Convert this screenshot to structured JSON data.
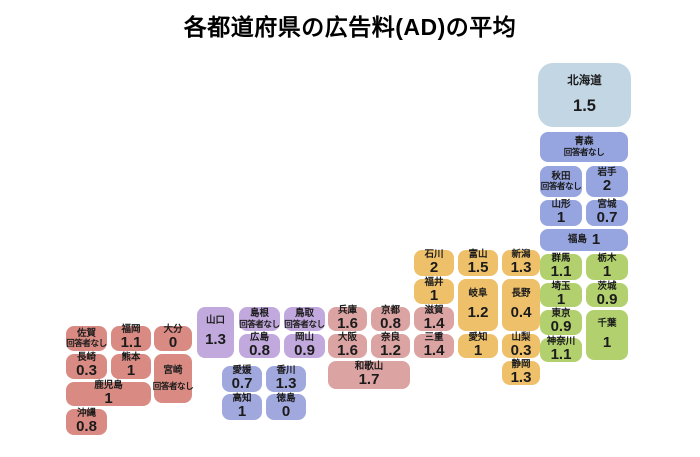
{
  "page_title": "各都道府県の広告料(AD)の平均",
  "chart_data": {
    "type": "heatmap",
    "variant": "japan-prefecture-grid-cartogram",
    "title": "各都道府県の広告料(AD)の平均",
    "metric": "広告料(AD)の平均",
    "no_answer_text": "回答者なし",
    "legend_position": "none",
    "region_colors": {
      "hokkaido": "#c3d6e4",
      "tohoku": "#96a5e0",
      "kanto": "#b2d06e",
      "chubu": "#efc06a",
      "kansai": "#dba3a2",
      "chugoku": "#c2a9dd",
      "shikoku": "#a0a8dd",
      "kyushu": "#d98b83"
    },
    "prefectures": [
      {
        "key": "hokkaido",
        "label": "北海道",
        "region": "hokkaido",
        "value": 1.5
      },
      {
        "key": "aomori",
        "label": "青森",
        "region": "tohoku",
        "value": null
      },
      {
        "key": "akita",
        "label": "秋田",
        "region": "tohoku",
        "value": null
      },
      {
        "key": "iwate",
        "label": "岩手",
        "region": "tohoku",
        "value": 2
      },
      {
        "key": "yamagata",
        "label": "山形",
        "region": "tohoku",
        "value": 1
      },
      {
        "key": "miyagi",
        "label": "宮城",
        "region": "tohoku",
        "value": 0.7
      },
      {
        "key": "fukushima",
        "label": "福島",
        "region": "tohoku",
        "value": 1
      },
      {
        "key": "gunma",
        "label": "群馬",
        "region": "kanto",
        "value": 1.1
      },
      {
        "key": "tochigi",
        "label": "栃木",
        "region": "kanto",
        "value": 1
      },
      {
        "key": "saitama",
        "label": "埼玉",
        "region": "kanto",
        "value": 1
      },
      {
        "key": "ibaraki",
        "label": "茨城",
        "region": "kanto",
        "value": 0.9
      },
      {
        "key": "tokyo",
        "label": "東京",
        "region": "kanto",
        "value": 0.9
      },
      {
        "key": "chiba",
        "label": "千葉",
        "region": "kanto",
        "value": 1
      },
      {
        "key": "kanagawa",
        "label": "神奈川",
        "region": "kanto",
        "value": 1.1
      },
      {
        "key": "niigata",
        "label": "新潟",
        "region": "chubu",
        "value": 1.3
      },
      {
        "key": "toyama",
        "label": "富山",
        "region": "chubu",
        "value": 1.5
      },
      {
        "key": "ishikawa",
        "label": "石川",
        "region": "chubu",
        "value": 2
      },
      {
        "key": "fukui",
        "label": "福井",
        "region": "chubu",
        "value": 1
      },
      {
        "key": "gifu",
        "label": "岐阜",
        "region": "chubu",
        "value": 1.2
      },
      {
        "key": "nagano",
        "label": "長野",
        "region": "chubu",
        "value": 0.4
      },
      {
        "key": "yamanashi",
        "label": "山梨",
        "region": "chubu",
        "value": 0.3
      },
      {
        "key": "shizuoka",
        "label": "静岡",
        "region": "chubu",
        "value": 1.3
      },
      {
        "key": "aichi",
        "label": "愛知",
        "region": "chubu",
        "value": 1
      },
      {
        "key": "shiga",
        "label": "滋賀",
        "region": "kansai",
        "value": 1.4
      },
      {
        "key": "mie",
        "label": "三重",
        "region": "kansai",
        "value": 1.4
      },
      {
        "key": "kyoto",
        "label": "京都",
        "region": "kansai",
        "value": 0.8
      },
      {
        "key": "hyogo",
        "label": "兵庫",
        "region": "kansai",
        "value": 1.6
      },
      {
        "key": "osaka",
        "label": "大阪",
        "region": "kansai",
        "value": 1.6
      },
      {
        "key": "nara",
        "label": "奈良",
        "region": "kansai",
        "value": 1.2
      },
      {
        "key": "wakayama",
        "label": "和歌山",
        "region": "kansai",
        "value": 1.7
      },
      {
        "key": "tottori",
        "label": "鳥取",
        "region": "chugoku",
        "value": null
      },
      {
        "key": "shimane",
        "label": "島根",
        "region": "chugoku",
        "value": null
      },
      {
        "key": "okayama",
        "label": "岡山",
        "region": "chugoku",
        "value": 0.9
      },
      {
        "key": "hiroshima",
        "label": "広島",
        "region": "chugoku",
        "value": 0.8
      },
      {
        "key": "yamaguchi",
        "label": "山口",
        "region": "chugoku",
        "value": 1.3
      },
      {
        "key": "kagawa",
        "label": "香川",
        "region": "shikoku",
        "value": 1.3
      },
      {
        "key": "ehime",
        "label": "愛媛",
        "region": "shikoku",
        "value": 0.7
      },
      {
        "key": "kochi",
        "label": "高知",
        "region": "shikoku",
        "value": 1
      },
      {
        "key": "tokushima",
        "label": "徳島",
        "region": "shikoku",
        "value": 0
      },
      {
        "key": "fukuoka",
        "label": "福岡",
        "region": "kyushu",
        "value": 1.1
      },
      {
        "key": "saga",
        "label": "佐賀",
        "region": "kyushu",
        "value": null
      },
      {
        "key": "nagasaki",
        "label": "長崎",
        "region": "kyushu",
        "value": 0.3
      },
      {
        "key": "kumamoto",
        "label": "熊本",
        "region": "kyushu",
        "value": 1
      },
      {
        "key": "oita",
        "label": "大分",
        "region": "kyushu",
        "value": 0
      },
      {
        "key": "miyazaki",
        "label": "宮崎",
        "region": "kyushu",
        "value": null
      },
      {
        "key": "kagoshima",
        "label": "鹿児島",
        "region": "kyushu",
        "value": 1
      },
      {
        "key": "okinawa",
        "label": "沖縄",
        "region": "kyushu",
        "value": 0.8
      }
    ]
  }
}
